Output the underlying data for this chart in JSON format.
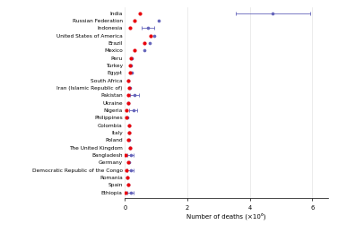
{
  "countries": [
    "India",
    "Russian Federation",
    "Indonesia",
    "United States of America",
    "Brazil",
    "Mexico",
    "Peru",
    "Turkey",
    "Egypt",
    "South Africa",
    "Iran (Islamic Republic of)",
    "Pakistan",
    "Ukraine",
    "Nigeria",
    "Philippines",
    "Colombia",
    "Italy",
    "Poland",
    "The United Kingdom",
    "Bangladesh",
    "Germany",
    "Democratic Republic of the Congo",
    "Romania",
    "Spain",
    "Ethiopia"
  ],
  "reported_deaths": [
    0.484,
    0.313,
    0.144,
    0.827,
    0.619,
    0.3,
    0.201,
    0.172,
    0.152,
    0.093,
    0.131,
    0.089,
    0.098,
    0.032,
    0.053,
    0.131,
    0.137,
    0.115,
    0.148,
    0.028,
    0.111,
    0.03,
    0.06,
    0.089,
    0.024
  ],
  "excess_deaths": [
    4.74,
    1.07,
    0.736,
    0.932,
    0.792,
    0.617,
    0.21,
    0.183,
    0.23,
    0.105,
    0.153,
    0.295,
    0.11,
    0.261,
    0.068,
    0.14,
    0.142,
    0.132,
    0.17,
    0.184,
    0.122,
    0.174,
    0.082,
    0.095,
    0.175
  ],
  "excess_err_low": [
    1.2,
    0.0,
    0.2,
    0.0,
    0.0,
    0.0,
    0.0,
    0.0,
    0.0,
    0.0,
    0.0,
    0.14,
    0.0,
    0.12,
    0.0,
    0.0,
    0.0,
    0.0,
    0.0,
    0.1,
    0.0,
    0.1,
    0.0,
    0.0,
    0.1
  ],
  "excess_err_high": [
    1.2,
    0.0,
    0.2,
    0.0,
    0.0,
    0.0,
    0.0,
    0.0,
    0.0,
    0.0,
    0.0,
    0.14,
    0.0,
    0.12,
    0.0,
    0.0,
    0.0,
    0.0,
    0.0,
    0.1,
    0.0,
    0.1,
    0.0,
    0.0,
    0.1
  ],
  "reported_color": "#e8000b",
  "excess_color": "#6666bb",
  "xlabel": "Number of deaths (×10⁶)",
  "xlim": [
    0,
    6.5
  ],
  "xticks": [
    0,
    2,
    4,
    6
  ],
  "background_color": "#ffffff",
  "grid_color": "#dddddd",
  "label_fontsize": 4.2,
  "tick_fontsize": 4.8,
  "xlabel_fontsize": 5.0
}
